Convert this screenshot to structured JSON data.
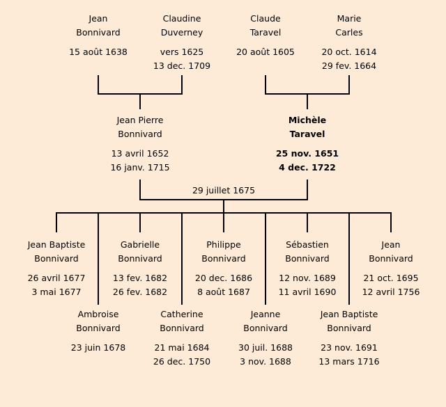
{
  "grandparents": [
    {
      "first": "Jean",
      "last": "Bonnivard",
      "d1": "15 août 1638",
      "d2": ""
    },
    {
      "first": "Claudine",
      "last": "Duverney",
      "d1": "vers 1625",
      "d2": "13 dec. 1709"
    },
    {
      "first": "Claude",
      "last": "Taravel",
      "d1": "20 août 1605",
      "d2": ""
    },
    {
      "first": "Marie",
      "last": "Carles",
      "d1": "20 oct. 1614",
      "d2": "29 fev. 1664"
    }
  ],
  "parents": [
    {
      "first": "Jean Pierre",
      "last": "Bonnivard",
      "d1": "13 avril 1652",
      "d2": "16 janv. 1715",
      "bold": false
    },
    {
      "first": "Michèle",
      "last": "Taravel",
      "d1": "25 nov. 1651",
      "d2": "4 dec. 1722",
      "bold": true
    }
  ],
  "marriage_date": "29 juillet 1675",
  "children": [
    {
      "first": "Jean Baptiste",
      "last": "Bonnivard",
      "d1": "26 avril 1677",
      "d2": "3 mai 1677"
    },
    {
      "first": "Ambroise",
      "last": "Bonnivard",
      "d1": "23 juin 1678",
      "d2": ""
    },
    {
      "first": "Gabrielle",
      "last": "Bonnivard",
      "d1": "13 fev. 1682",
      "d2": "26 fev. 1682"
    },
    {
      "first": "Catherine",
      "last": "Bonnivard",
      "d1": "21 mai 1684",
      "d2": "26 dec. 1750"
    },
    {
      "first": "Philippe",
      "last": "Bonnivard",
      "d1": "20 dec. 1686",
      "d2": "8 août 1687"
    },
    {
      "first": "Jeanne",
      "last": "Bonnivard",
      "d1": "30 juil. 1688",
      "d2": "3 nov. 1688"
    },
    {
      "first": "Sébastien",
      "last": "Bonnivard",
      "d1": "12 nov. 1689",
      "d2": "11 avril 1690"
    },
    {
      "first": "Jean Baptiste",
      "last": "Bonnivard",
      "d1": "23 nov. 1691",
      "d2": "13 mars 1716"
    },
    {
      "first": "Jean",
      "last": "Bonnivard",
      "d1": "21 oct. 1695",
      "d2": "12 avril 1756"
    }
  ]
}
